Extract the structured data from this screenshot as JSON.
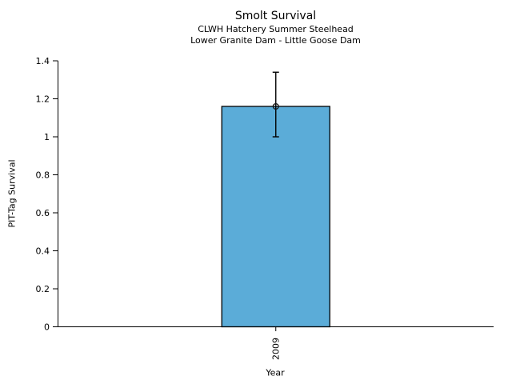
{
  "chart_data": {
    "type": "bar",
    "title": "Smolt Survival",
    "subtitle_line1": "CLWH Hatchery Summer Steelhead",
    "subtitle_line2": "Lower Granite Dam - Little Goose Dam",
    "xlabel": "Year",
    "ylabel": "PIT-Tag Survival",
    "categories": [
      "2009"
    ],
    "values": [
      1.16
    ],
    "error_low": [
      1.0
    ],
    "error_high": [
      1.34
    ],
    "ylim": [
      0,
      1.4
    ],
    "yticks": [
      0,
      0.2,
      0.4,
      0.6,
      0.8,
      1,
      1.2,
      1.4
    ],
    "grid": false,
    "legend_position": "none",
    "bar_color": "#5BACD8",
    "bar_edge_color": "#000000",
    "error_color": "#000000",
    "axis_color": "#000000",
    "marker": "open-circle"
  }
}
